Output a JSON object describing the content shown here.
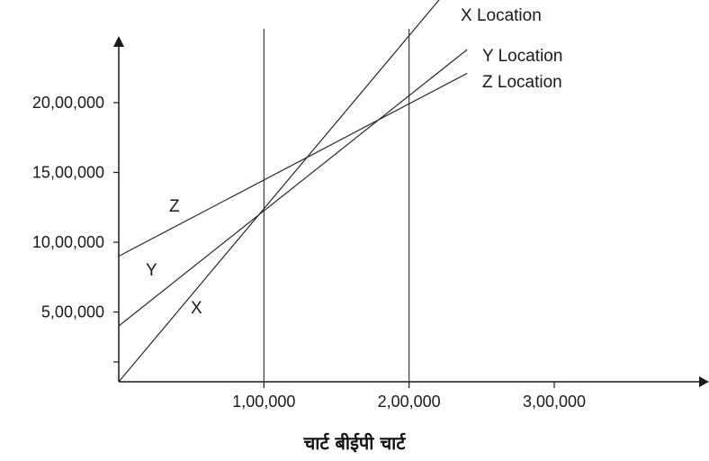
{
  "chart_data": {
    "type": "line",
    "title": "",
    "caption": "चार्ट बीईपी चार्ट",
    "xlabel": "",
    "ylabel": "",
    "xlim": [
      0,
      430000
    ],
    "ylim": [
      0,
      2250000
    ],
    "x_ticks": [
      {
        "value": 100000,
        "label": "1,00,000"
      },
      {
        "value": 200000,
        "label": "2,00,000"
      },
      {
        "value": 300000,
        "label": "3,00,000"
      }
    ],
    "y_ticks": [
      {
        "value": 500000,
        "label": "5,00,000"
      },
      {
        "value": 1000000,
        "label": "10,00,000"
      },
      {
        "value": 1500000,
        "label": "15,00,000"
      },
      {
        "value": 2000000,
        "label": "20,00,000"
      }
    ],
    "reference_lines_x": [
      100000,
      200000
    ],
    "series": [
      {
        "name": "X",
        "end_label": "X Location",
        "x": [
          0,
          250000
        ],
        "y": [
          0,
          3100000
        ]
      },
      {
        "name": "Y",
        "end_label": "Y Location",
        "x": [
          0,
          240000
        ],
        "y": [
          400000,
          2380000
        ]
      },
      {
        "name": "Z",
        "end_label": "Z Location",
        "x": [
          0,
          240000
        ],
        "y": [
          900000,
          2210000
        ]
      }
    ],
    "line_color": "#2a2a2a",
    "axis_color": "#1a1a1a",
    "grid": false
  }
}
